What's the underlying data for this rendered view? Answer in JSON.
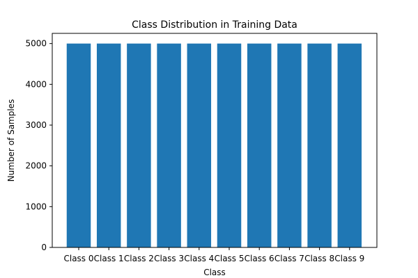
{
  "chart_data": {
    "type": "bar",
    "title": "Class Distribution in Training Data",
    "xlabel": "Class",
    "ylabel": "Number of Samples",
    "categories": [
      "Class 0",
      "Class 1",
      "Class 2",
      "Class 3",
      "Class 4",
      "Class 5",
      "Class 6",
      "Class 7",
      "Class 8",
      "Class 9"
    ],
    "values": [
      5000,
      5000,
      5000,
      5000,
      5000,
      5000,
      5000,
      5000,
      5000,
      5000
    ],
    "ylim": [
      0,
      5250
    ],
    "yticks": [
      0,
      1000,
      2000,
      3000,
      4000,
      5000
    ],
    "grid": false,
    "legend": "none",
    "colors": {
      "bar": "#1f77b4",
      "axis": "#000000",
      "background": "#ffffff"
    }
  }
}
